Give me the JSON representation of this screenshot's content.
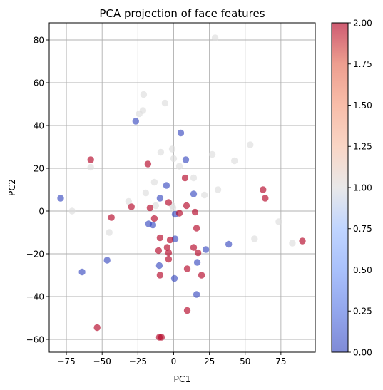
{
  "chart_data": {
    "type": "scatter",
    "title": "PCA projection of face features",
    "xlabel": "PC1",
    "ylabel": "PC2",
    "xlim": [
      -87,
      99
    ],
    "ylim": [
      -66,
      88
    ],
    "xticks": [
      -75,
      -50,
      -25,
      0,
      25,
      50,
      75
    ],
    "yticks": [
      -60,
      -40,
      -20,
      0,
      20,
      40,
      60,
      80
    ],
    "grid": true,
    "colormap": "coolwarm",
    "point_alpha": 0.65,
    "colorbar": {
      "min": 0.0,
      "max": 2.0,
      "ticks": [
        "0.00",
        "0.25",
        "0.50",
        "0.75",
        "1.00",
        "1.25",
        "1.50",
        "1.75",
        "2.00"
      ]
    },
    "series": [
      {
        "name": "class 0",
        "class_value": 0,
        "color": "#3b4cc0",
        "points": [
          [
            -79,
            6
          ],
          [
            -64,
            -28.5
          ],
          [
            -46.5,
            -23
          ],
          [
            -26.5,
            42
          ],
          [
            5,
            36.5
          ],
          [
            8.5,
            24
          ],
          [
            -9.5,
            6
          ],
          [
            -5,
            12
          ],
          [
            -17.5,
            -6
          ],
          [
            -14.5,
            -6.5
          ],
          [
            1,
            -1.5
          ],
          [
            14,
            8
          ],
          [
            1,
            -13
          ],
          [
            22.5,
            -18
          ],
          [
            38.5,
            -15.5
          ],
          [
            -10,
            -25.5
          ],
          [
            16.5,
            -24
          ],
          [
            0.5,
            -31.5
          ],
          [
            16,
            -39
          ]
        ]
      },
      {
        "name": "class 1",
        "class_value": 1,
        "color": "#dddddd",
        "points": [
          [
            29,
            81
          ],
          [
            -21,
            54.5
          ],
          [
            -21.5,
            47
          ],
          [
            -24,
            45.5
          ],
          [
            -6,
            50.5
          ],
          [
            -9,
            27.5
          ],
          [
            -1,
            29
          ],
          [
            0,
            24.5
          ],
          [
            4,
            21
          ],
          [
            27,
            26.5
          ],
          [
            53.5,
            31
          ],
          [
            42.5,
            23.5
          ],
          [
            -58,
            20.5
          ],
          [
            14,
            15.5
          ],
          [
            -13.5,
            13.5
          ],
          [
            31,
            10
          ],
          [
            -19.5,
            8.5
          ],
          [
            21.5,
            7.5
          ],
          [
            -31.5,
            4.5
          ],
          [
            -12.5,
            2.5
          ],
          [
            -71,
            0
          ],
          [
            -1,
            2.5
          ],
          [
            -0.5,
            1.5
          ],
          [
            73.5,
            -5
          ],
          [
            -45,
            -10
          ],
          [
            56.5,
            -13
          ],
          [
            83,
            -15
          ]
        ]
      },
      {
        "name": "class 2",
        "class_value": 2,
        "color": "#b40426",
        "points": [
          [
            -58,
            24
          ],
          [
            -18,
            22
          ],
          [
            8,
            15.5
          ],
          [
            -3.5,
            4
          ],
          [
            9,
            2.5
          ],
          [
            -29.5,
            2
          ],
          [
            -16.5,
            1.5
          ],
          [
            -43.5,
            -3
          ],
          [
            -13.5,
            -3.5
          ],
          [
            62.5,
            10
          ],
          [
            64,
            6
          ],
          [
            4,
            -1
          ],
          [
            15,
            -0.5
          ],
          [
            -9.5,
            -12.5
          ],
          [
            16,
            -8
          ],
          [
            -2.5,
            -13.5
          ],
          [
            14,
            -17
          ],
          [
            -10.5,
            -18.5
          ],
          [
            -3.5,
            -19.5
          ],
          [
            17,
            -19.5
          ],
          [
            -3.5,
            -22.5
          ],
          [
            9.5,
            -27
          ],
          [
            19.5,
            -30
          ],
          [
            -9.5,
            -30
          ],
          [
            90,
            -14
          ],
          [
            -53.5,
            -54.5
          ],
          [
            -10,
            -59
          ],
          [
            -8.5,
            -59
          ],
          [
            9.5,
            -46.5
          ],
          [
            -4.5,
            -17
          ]
        ]
      }
    ]
  }
}
